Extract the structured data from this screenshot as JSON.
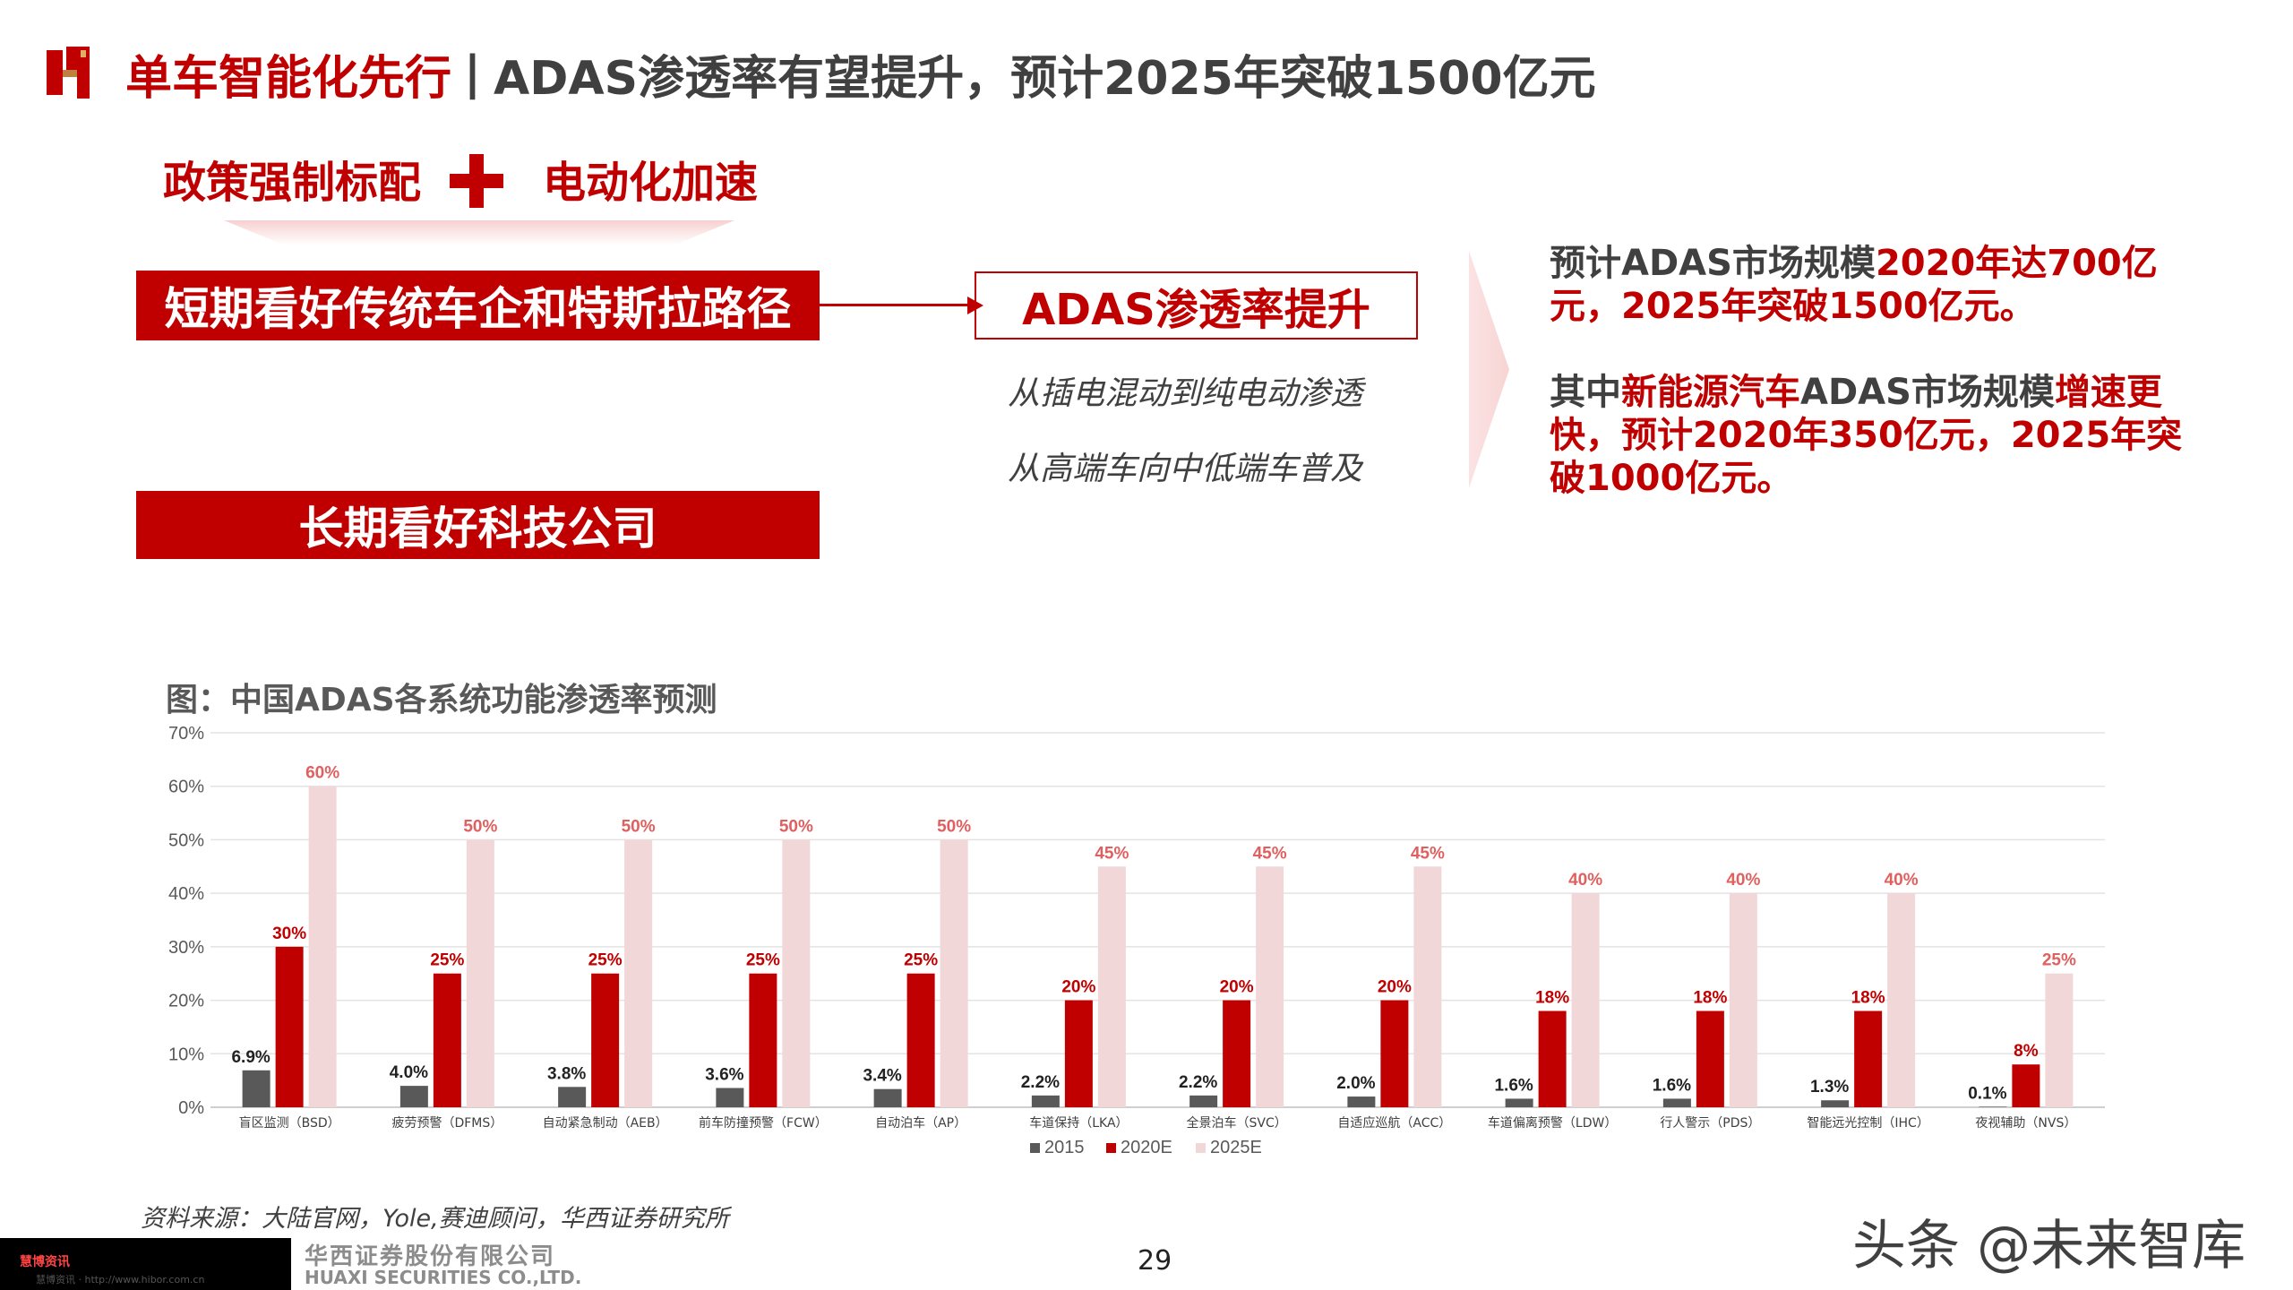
{
  "header": {
    "title_main": "单车智能化先行",
    "separator": "|",
    "title_sub": "ADAS渗透率有望提升，预计2025年突破1500亿元"
  },
  "drivers": {
    "left": "政策强制标配",
    "right": "电动化加速"
  },
  "boxes": {
    "short_term": "短期看好传统车企和特斯拉路径",
    "long_term": "长期看好科技公司",
    "adas": "ADAS渗透率提升",
    "line1": "从插电混动到纯电动渗透",
    "line2": "从高端车向中低端车普及"
  },
  "right_text": {
    "p1_a": "预计ADAS市场规模",
    "p1_b": "2020年达700亿",
    "p1_c": "元，2025年突破1500亿元。",
    "p2_a": "其中",
    "p2_b": "新能源汽车",
    "p2_c": "ADAS市场规模",
    "p2_d": "增速更",
    "p2_e": "快",
    "p2_f": "，预计2020年350亿元，2025年突破1000亿元。"
  },
  "chart_title": "图：中国ADAS各系统功能渗透率预测",
  "chart_data": {
    "type": "bar",
    "categories": [
      "盲区监测（BSD）",
      "疲劳预警（DFMS）",
      "自动紧急制动（AEB）",
      "前车防撞预警（FCW）",
      "自动泊车（AP）",
      "车道保持（LKA）",
      "全景泊车（SVC）",
      "自适应巡航（ACC）",
      "车道偏离预警（LDW）",
      "行人警示（PDS）",
      "智能远光控制（IHC）",
      "夜视辅助（NVS）"
    ],
    "series": [
      {
        "name": "2015",
        "values": [
          6.9,
          4.0,
          3.8,
          3.6,
          3.4,
          2.2,
          2.2,
          2.0,
          1.6,
          1.6,
          1.3,
          0.1
        ],
        "labels": [
          "6.9%",
          "4.0%",
          "3.8%",
          "3.6%",
          "3.4%",
          "2.2%",
          "2.2%",
          "2.0%",
          "1.6%",
          "1.6%",
          "1.3%",
          "0.1%"
        ],
        "color": "#595959",
        "label_color": "#222222"
      },
      {
        "name": "2020E",
        "values": [
          30,
          25,
          25,
          25,
          25,
          20,
          20,
          20,
          18,
          18,
          18,
          8
        ],
        "labels": [
          "30%",
          "25%",
          "25%",
          "25%",
          "25%",
          "20%",
          "20%",
          "20%",
          "18%",
          "18%",
          "18%",
          "8%"
        ],
        "color": "#c00000",
        "label_color": "#c00000"
      },
      {
        "name": "2025E",
        "values": [
          60,
          50,
          50,
          50,
          50,
          45,
          45,
          45,
          40,
          40,
          40,
          25
        ],
        "labels": [
          "60%",
          "50%",
          "50%",
          "50%",
          "50%",
          "45%",
          "45%",
          "45%",
          "40%",
          "40%",
          "40%",
          "25%"
        ],
        "color": "#f2d7d9",
        "label_color": "#e06060"
      }
    ],
    "yticks": [
      "0%",
      "10%",
      "20%",
      "30%",
      "40%",
      "50%",
      "60%",
      "70%"
    ],
    "ylim": [
      0,
      70
    ],
    "grid": true,
    "legend_position": "bottom"
  },
  "source": "资料来源：大陆官网，Yole,赛迪顾问，华西证券研究所",
  "footer": {
    "company_cn": "华西证券股份有限公司",
    "company_en": "HUAXI SECURITIES CO.,LTD.",
    "page": "29",
    "watermark": "头条 @未来智库",
    "badge": "慧博资讯",
    "badge_sub": "慧博资讯 · http://www.hibor.com.cn"
  },
  "colors": {
    "accent": "#c00000",
    "text_gray": "#404040"
  }
}
